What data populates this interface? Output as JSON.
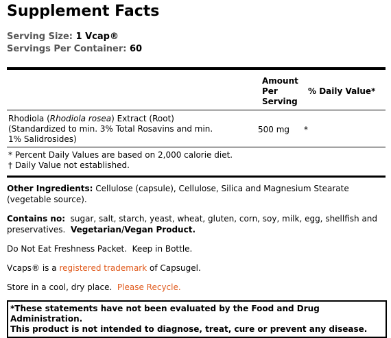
{
  "title": "Supplement Facts",
  "serving": {
    "size_label": "Serving Size:",
    "size_value": "1 Vcap®",
    "per_container_label": "Servings Per Container:",
    "per_container_value": 60
  },
  "table": {
    "header": {
      "amount": "Amount Per Serving",
      "daily_value": "% Daily Value*"
    },
    "rows": [
      {
        "name_parts": [
          "Rhodiola (",
          "Rhodiola rosea",
          ") Extract (Root)"
        ],
        "detail": "(Standardized to min. 3% Total Rosavins and min. 1% Salidrosides)",
        "amount": "500 mg",
        "daily_value": "*"
      }
    ],
    "footnotes": [
      "* Percent Daily Values are based on 2,000 calorie diet.",
      "† Daily Value not established."
    ]
  },
  "other_ingredients": {
    "label": "Other Ingredients:",
    "text": "Cellulose (capsule), Cellulose, Silica and Magnesium Stearate (vegetable source)."
  },
  "contains_no": {
    "label": "Contains no:",
    "text": "sugar, salt, starch, yeast, wheat, gluten, corn, soy, milk, egg, shellfish and preservatives.",
    "bold": "Vegetarian/Vegan Product."
  },
  "freshness": "Do Not Eat Freshness Packet.  Keep in Bottle.",
  "trademark": {
    "before": "Vcaps® is a",
    "link": "registered trademark",
    "after": "of Capsugel."
  },
  "storage": {
    "text": "Store in a cool, dry place.",
    "link": "Please Recycle."
  },
  "disclaimer": [
    "*These statements have not been evaluated by the Food and Drug Administration.",
    "This product is not intended to diagnose, treat, cure or prevent any disease."
  ]
}
